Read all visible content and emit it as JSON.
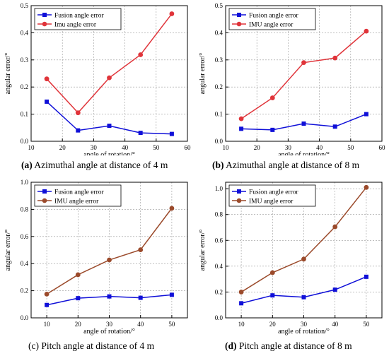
{
  "chart_data": [
    {
      "id": "a",
      "type": "line",
      "caption_letter": "(a)",
      "caption_text": " Azimuthal angle at distance of 4 m",
      "xlabel": "angle of rotation/°",
      "ylabel": "angular error/°",
      "xlim": [
        10,
        60
      ],
      "ylim": [
        0,
        0.5
      ],
      "xticks": [
        10,
        20,
        30,
        40,
        50,
        60
      ],
      "yticks": [
        0.0,
        0.1,
        0.2,
        0.3,
        0.4,
        0.5
      ],
      "grid": true,
      "legend_position": "top-left",
      "series": [
        {
          "name": "Fusion angle error",
          "color": "#1010d8",
          "marker": "square",
          "x": [
            15,
            25,
            35,
            45,
            55
          ],
          "y": [
            0.146,
            0.04,
            0.057,
            0.031,
            0.027
          ]
        },
        {
          "name": "Imu angle error",
          "color": "#e0343a",
          "marker": "circle",
          "x": [
            15,
            25,
            35,
            45,
            55
          ],
          "y": [
            0.23,
            0.105,
            0.234,
            0.319,
            0.47
          ]
        }
      ]
    },
    {
      "id": "b",
      "type": "line",
      "caption_letter": "(b)",
      "caption_text": " Azimuthal angle at distance of 8 m",
      "xlabel": "angle of rotation/°",
      "ylabel": "angular error/°",
      "xlim": [
        10,
        60
      ],
      "ylim": [
        0,
        0.5
      ],
      "xticks": [
        10,
        20,
        30,
        40,
        50,
        60
      ],
      "yticks": [
        0.0,
        0.1,
        0.2,
        0.3,
        0.4,
        0.5
      ],
      "grid": true,
      "legend_position": "top-left",
      "series": [
        {
          "name": "Fusion angle error",
          "color": "#1010d8",
          "marker": "square",
          "x": [
            15,
            25,
            35,
            45,
            55
          ],
          "y": [
            0.046,
            0.042,
            0.065,
            0.054,
            0.1
          ]
        },
        {
          "name": "IMU angle error",
          "color": "#e0343a",
          "marker": "circle",
          "x": [
            15,
            25,
            35,
            45,
            55
          ],
          "y": [
            0.083,
            0.16,
            0.29,
            0.307,
            0.406
          ]
        }
      ]
    },
    {
      "id": "c",
      "type": "line",
      "caption_letter": "(c)",
      "caption_text": " Pitch angle at distance of 4 m",
      "xlabel": "angle of rotation/°",
      "ylabel": "angular error/°",
      "xlim": [
        5,
        55
      ],
      "ylim": [
        0,
        1.0
      ],
      "xticks": [
        10,
        20,
        30,
        40,
        50
      ],
      "yticks": [
        0.0,
        0.2,
        0.4,
        0.6,
        0.8,
        1.0
      ],
      "grid": true,
      "legend_position": "top-left",
      "series": [
        {
          "name": "Fusion angle error",
          "color": "#1010d8",
          "marker": "square",
          "x": [
            10,
            20,
            30,
            40,
            50
          ],
          "y": [
            0.095,
            0.145,
            0.158,
            0.148,
            0.17
          ]
        },
        {
          "name": "IMU angle error",
          "color": "#9b4a2b",
          "marker": "circle",
          "x": [
            10,
            20,
            30,
            40,
            50
          ],
          "y": [
            0.175,
            0.318,
            0.427,
            0.502,
            0.808
          ]
        }
      ]
    },
    {
      "id": "d",
      "type": "line",
      "caption_letter": "(d)",
      "caption_text": " Pitch angle at distance of 8 m",
      "xlabel": "angle of rotation/°",
      "ylabel": "angular error/°",
      "xlim": [
        5,
        55
      ],
      "ylim": [
        0,
        1.05
      ],
      "xticks": [
        10,
        20,
        30,
        40,
        50
      ],
      "yticks": [
        0.0,
        0.2,
        0.4,
        0.6,
        0.8,
        1.0
      ],
      "grid": true,
      "legend_position": "top-left",
      "series": [
        {
          "name": "Fusion angle error",
          "color": "#1010d8",
          "marker": "square",
          "x": [
            10,
            20,
            30,
            40,
            50
          ],
          "y": [
            0.113,
            0.174,
            0.16,
            0.218,
            0.318
          ]
        },
        {
          "name": "IMU angle error",
          "color": "#9b4a2b",
          "marker": "circle",
          "x": [
            10,
            20,
            30,
            40,
            50
          ],
          "y": [
            0.2,
            0.35,
            0.455,
            0.705,
            1.01
          ]
        }
      ]
    }
  ]
}
